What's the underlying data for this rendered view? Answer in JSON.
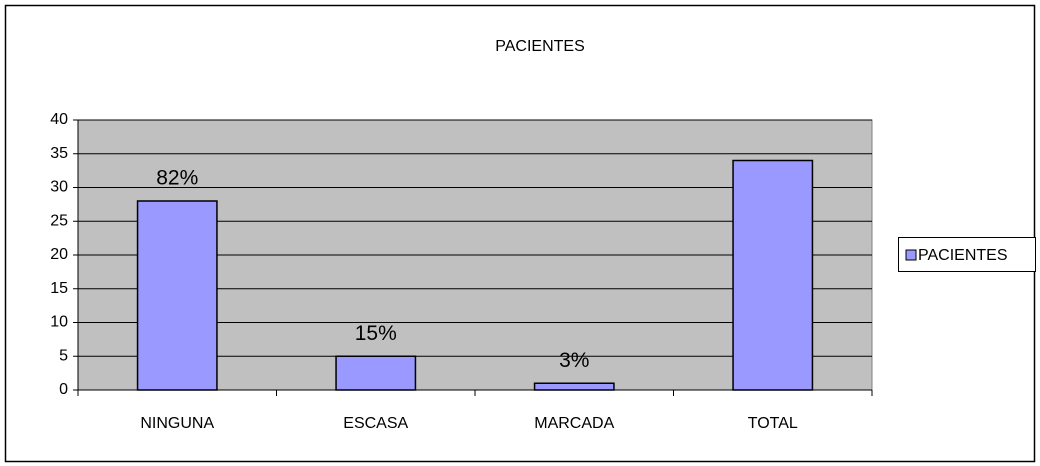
{
  "chart_data": {
    "type": "bar",
    "title": "PACIENTES",
    "categories": [
      "NINGUNA",
      "ESCASA",
      "MARCADA",
      "TOTAL"
    ],
    "series": [
      {
        "name": "PACIENTES",
        "color": "#9999ff",
        "values": [
          28,
          5,
          1,
          34
        ]
      }
    ],
    "annotations": [
      "82%",
      "15%",
      "3%",
      null
    ],
    "ylim": [
      0,
      40
    ],
    "yticks": [
      0,
      5,
      10,
      15,
      20,
      25,
      30,
      35,
      40
    ],
    "grid": true,
    "legend": "right"
  }
}
